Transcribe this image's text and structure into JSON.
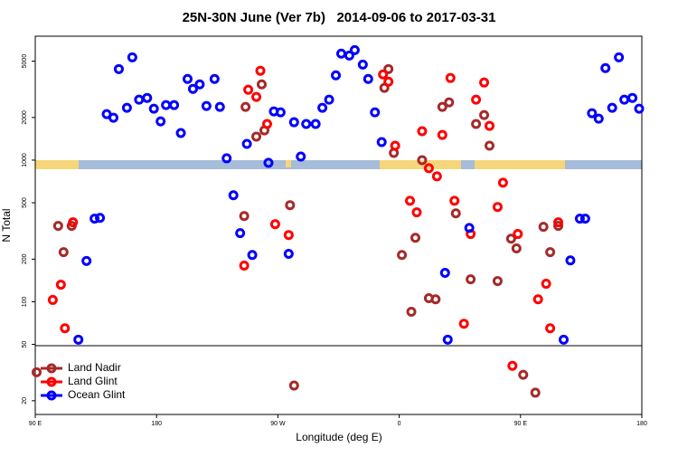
{
  "chart_data": {
    "type": "scatter",
    "title": "25N-30N June (Ver 7b)   2014-09-06 to 2017-03-31",
    "xlabel": "Longitude (deg E)",
    "ylabel": "N Total",
    "xlim": [
      90,
      540
    ],
    "xticks": [
      {
        "value": 90,
        "label": "90 E"
      },
      180,
      {
        "value": 270,
        "label": "90 W"
      },
      {
        "value": 360,
        "label": "0"
      },
      {
        "value": 450,
        "label": "90 E"
      },
      {
        "value": 540,
        "label": "180"
      }
    ],
    "ylim": [
      16,
      7500
    ],
    "yscale": "log",
    "yticks": [
      20,
      50,
      100,
      200,
      500,
      1000,
      2000,
      5000
    ],
    "legend": "bottom-left",
    "series": [
      {
        "name": "Land Nadir",
        "color": "#a52a2a",
        "x": [
          107,
          111,
          117,
          245,
          246,
          254,
          258,
          260,
          279,
          282,
          349,
          352,
          356,
          362,
          369,
          372,
          377,
          382,
          387,
          392,
          397,
          402,
          413,
          417,
          423,
          427,
          433,
          443,
          447,
          452,
          461,
          467,
          472,
          478,
          91
        ],
        "values": [
          343,
          224,
          343,
          403,
          2376,
          1466,
          3427,
          1622,
          481,
          25.6,
          3236,
          4395,
          1125,
          214,
          85,
          283,
          1000,
          106,
          104,
          2376,
          2559,
          421,
          144,
          1800,
          2081,
          1265,
          140,
          279,
          238,
          30.5,
          22.8,
          338,
          224,
          343,
          31.8
        ]
      },
      {
        "name": "Land Glint",
        "color": "#ff0000",
        "x": [
          103,
          109,
          112,
          118,
          245,
          248,
          257,
          254,
          262,
          268,
          278,
          348,
          352,
          357,
          368,
          373,
          377,
          382,
          388,
          392,
          398,
          401,
          408,
          413,
          417,
          423,
          427,
          433,
          437,
          444,
          448,
          463,
          469,
          472,
          478
        ],
        "values": [
          103,
          132,
          65,
          364,
          180,
          3140,
          4276,
          2793,
          1800,
          353,
          296,
          4030,
          3579,
          1265,
          516,
          428,
          1600,
          877,
          768,
          1507,
          3802,
          516,
          70,
          301,
          2671,
          3532,
          1746,
          467,
          693,
          35.3,
          301,
          104,
          134,
          65,
          364
        ]
      },
      {
        "name": "Ocean Glint",
        "color": "#0000ff",
        "x": [
          122,
          128,
          134,
          138,
          143,
          148,
          152,
          158,
          162,
          167,
          173,
          178,
          183,
          187,
          193,
          198,
          203,
          207,
          212,
          217,
          223,
          227,
          232,
          237,
          242,
          247,
          251,
          263,
          267,
          272,
          278,
          282,
          287,
          291,
          298,
          303,
          308,
          313,
          317,
          323,
          327,
          333,
          337,
          342,
          347,
          394,
          396,
          412,
          482,
          487,
          494,
          498,
          503,
          508,
          513,
          518,
          523,
          527,
          533,
          538
        ],
        "values": [
          54,
          194,
          386,
          391,
          2113,
          1993,
          4395,
          2341,
          5321,
          2671,
          2750,
          2306,
          1878,
          2448,
          2448,
          1553,
          3743,
          3186,
          3427,
          2412,
          3743,
          2376,
          1030,
          565,
          305,
          1302,
          214,
          957,
          2207,
          2176,
          218,
          1852,
          1060,
          1800,
          1800,
          2341,
          2671,
          3971,
          5650,
          5480,
          5985,
          4730,
          3743,
          2176,
          1341,
          160,
          54,
          332,
          54,
          196,
          386,
          386,
          2145,
          1963,
          4467,
          2341,
          5321,
          2671,
          2750,
          2306
        ]
      }
    ]
  }
}
